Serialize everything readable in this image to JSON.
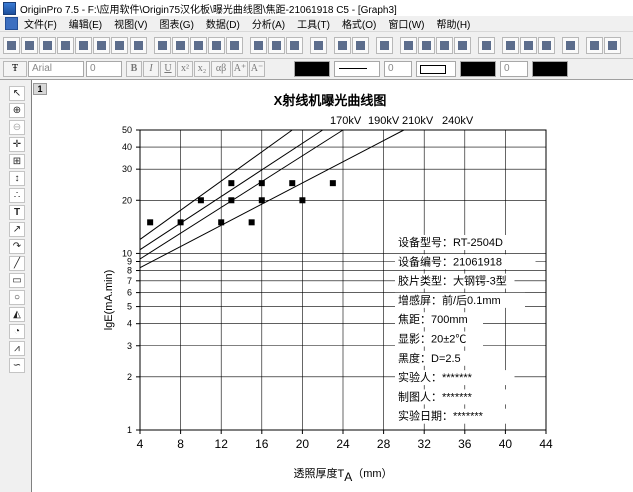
{
  "window": {
    "title": "OriginPro 7.5 - F:\\应用软件\\Origin75汉化板\\曝光曲线图\\焦距-21061918 C5 - [Graph3]"
  },
  "menu": [
    "文件(F)",
    "编辑(E)",
    "视图(V)",
    "图表(G)",
    "数据(D)",
    "分析(A)",
    "工具(T)",
    "格式(O)",
    "窗口(W)",
    "帮助(H)"
  ],
  "format_toolbar": {
    "font": "Arial",
    "size": "0",
    "bold": "B",
    "italic": "I",
    "underline": "U",
    "superscript": "x²",
    "subscript": "x₂",
    "greek": "αβ",
    "increase_font": "A⁺",
    "decrease_font": "A⁻",
    "line_width": "0",
    "pattern_size": "0"
  },
  "layer": "1",
  "chart_data": {
    "type": "scatter",
    "title": "X射线机曝光曲线图",
    "xlabel_main": "透照厚度T",
    "xlabel_sub": "A",
    "xlabel_unit": "（mm）",
    "ylabel": "lgE(mA.min)",
    "x_range": [
      4,
      44
    ],
    "y_range": [
      1,
      50
    ],
    "y_scale": "log",
    "x_ticks": [
      4,
      8,
      12,
      16,
      20,
      24,
      28,
      32,
      36,
      40,
      44
    ],
    "y_ticks": [
      1,
      2,
      3,
      4,
      5,
      6,
      7,
      8,
      9,
      10,
      20,
      30,
      40,
      50
    ],
    "grid": true,
    "line_labels": [
      "170kV",
      "190kV",
      "210kV",
      "240kV"
    ],
    "points": [
      {
        "x": 5,
        "y": 15
      },
      {
        "x": 8,
        "y": 15
      },
      {
        "x": 10,
        "y": 20
      },
      {
        "x": 12,
        "y": 15
      },
      {
        "x": 13,
        "y": 20
      },
      {
        "x": 13,
        "y": 25
      },
      {
        "x": 15,
        "y": 15
      },
      {
        "x": 16,
        "y": 20
      },
      {
        "x": 16,
        "y": 25
      },
      {
        "x": 19,
        "y": 25
      },
      {
        "x": 20,
        "y": 20
      },
      {
        "x": 23,
        "y": 25
      }
    ],
    "lines": [
      {
        "name": "170kV",
        "x": [
          4,
          19
        ],
        "y": [
          12,
          50
        ]
      },
      {
        "name": "190kV",
        "x": [
          4,
          22
        ],
        "y": [
          10.5,
          50
        ]
      },
      {
        "name": "210kV",
        "x": [
          4,
          24
        ],
        "y": [
          9.3,
          50
        ]
      },
      {
        "name": "240kV",
        "x": [
          4,
          30
        ],
        "y": [
          8.3,
          50
        ]
      }
    ],
    "info_lines": [
      "设备型号：RT-2504D",
      "设备编号：21061918",
      "胶片类型：大钢锷-3型",
      "增感屏：前/后0.1mm",
      "焦距：700mm",
      "显影：20±2℃",
      "黑度：D=2.5",
      "实验人：*******",
      "制图人：*******",
      "实验日期：*******"
    ]
  }
}
